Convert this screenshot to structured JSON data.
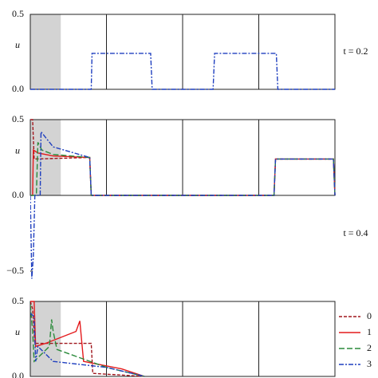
{
  "chart_data": [
    {
      "type": "line",
      "ylabel": "u",
      "annotation": "t = 0.2",
      "xlim": [
        0,
        4
      ],
      "ylim": [
        0,
        0.5
      ],
      "yticks": [
        {
          "value": 0,
          "label": "0.0"
        },
        {
          "value": 0.5,
          "label": "0.5"
        }
      ],
      "xgrid": [
        1,
        2,
        3
      ],
      "shade": [
        0,
        0.4
      ],
      "shade_color": "#d3d3d3",
      "series": [
        {
          "color": "#1f3fbf",
          "dash": "6 2 2 2",
          "x": [
            0,
            0.8,
            0.81,
            1.58,
            1.6,
            2.4,
            2.42,
            3.23,
            3.25,
            4
          ],
          "values": [
            0,
            0,
            0.24,
            0.24,
            0,
            0,
            0.24,
            0.24,
            0,
            0
          ]
        }
      ]
    },
    {
      "type": "line",
      "ylabel": "u",
      "annotation": "t = 0.4",
      "xlim": [
        0,
        4
      ],
      "ylim": [
        -0.5,
        0.5
      ],
      "yticks": [
        {
          "value": -0.5,
          "label": "−0.5"
        },
        {
          "value": 0,
          "label": "0.0"
        },
        {
          "value": 0.5,
          "label": "0.5"
        }
      ],
      "xgrid": [
        1,
        2,
        3
      ],
      "shade": [
        0,
        0.4
      ],
      "shade_color": "#d3d3d3",
      "series": [
        {
          "color": "#a0161d",
          "dash": "4 2",
          "x": [
            0,
            0.03,
            0.05,
            0.78,
            0.8,
            3.2,
            3.22,
            3.98,
            4
          ],
          "values": [
            0.5,
            0.5,
            0.24,
            0.25,
            0,
            0,
            0.24,
            0.24,
            0
          ]
        },
        {
          "color": "#e41a1c",
          "dash": "",
          "x": [
            0,
            0.03,
            0.04,
            0.1,
            0.3,
            0.78,
            0.8,
            3.2,
            3.22,
            3.98,
            4
          ],
          "values": [
            0,
            0,
            0.3,
            0.28,
            0.26,
            0.25,
            0,
            0,
            0.24,
            0.24,
            0
          ]
        },
        {
          "color": "#2a8a3a",
          "dash": "7 3",
          "x": [
            0,
            0.08,
            0.1,
            0.15,
            0.3,
            0.78,
            0.8,
            3.2,
            3.22,
            3.98,
            4
          ],
          "values": [
            0,
            0,
            0.35,
            0.3,
            0.27,
            0.25,
            0,
            0,
            0.24,
            0.24,
            0
          ]
        },
        {
          "color": "#1f3fbf",
          "dash": "6 2 2 2",
          "x": [
            0,
            0.02,
            0.04,
            0.06,
            0.13,
            0.14,
            0.3,
            0.78,
            0.8,
            3.2,
            3.22,
            3.98,
            4
          ],
          "values": [
            0,
            -0.55,
            -0.4,
            0,
            0,
            0.42,
            0.32,
            0.25,
            0,
            0,
            0.24,
            0.24,
            0
          ]
        }
      ]
    },
    {
      "type": "line",
      "ylabel": "u",
      "xlim": [
        0,
        4
      ],
      "ylim": [
        0,
        0.5
      ],
      "legend": "right",
      "yticks": [
        {
          "value": 0,
          "label": "0.0"
        },
        {
          "value": 0.5,
          "label": "0.5"
        }
      ],
      "xgrid": [
        1,
        2,
        3
      ],
      "shade": [
        0,
        0.4
      ],
      "shade_color": "#d3d3d3",
      "series": [
        {
          "name": "0",
          "color": "#a0161d",
          "dash": "4 2",
          "x": [
            0,
            0.03,
            0.06,
            0.8,
            0.82,
            1.5
          ],
          "values": [
            0.5,
            0.45,
            0.22,
            0.22,
            0.02,
            0
          ]
        },
        {
          "name": "1",
          "color": "#e41a1c",
          "dash": "",
          "x": [
            0,
            0.05,
            0.07,
            0.2,
            0.6,
            0.65,
            0.7,
            1.2,
            1.5
          ],
          "values": [
            0.5,
            0.5,
            0.2,
            0.22,
            0.3,
            0.37,
            0.1,
            0.05,
            0
          ]
        },
        {
          "name": "2",
          "color": "#2a8a3a",
          "dash": "7 3",
          "x": [
            0,
            0.03,
            0.05,
            0.25,
            0.28,
            0.3,
            0.35,
            1.0,
            1.5
          ],
          "values": [
            0.48,
            0.3,
            0.1,
            0.2,
            0.38,
            0.3,
            0.18,
            0.06,
            0
          ]
        },
        {
          "name": "3",
          "color": "#1f3fbf",
          "dash": "6 2 2 2",
          "x": [
            0,
            0.05,
            0.07,
            0.1,
            0.3,
            1.0,
            1.5
          ],
          "values": [
            0.42,
            0.4,
            0.1,
            0.2,
            0.1,
            0.06,
            0
          ]
        }
      ]
    }
  ]
}
